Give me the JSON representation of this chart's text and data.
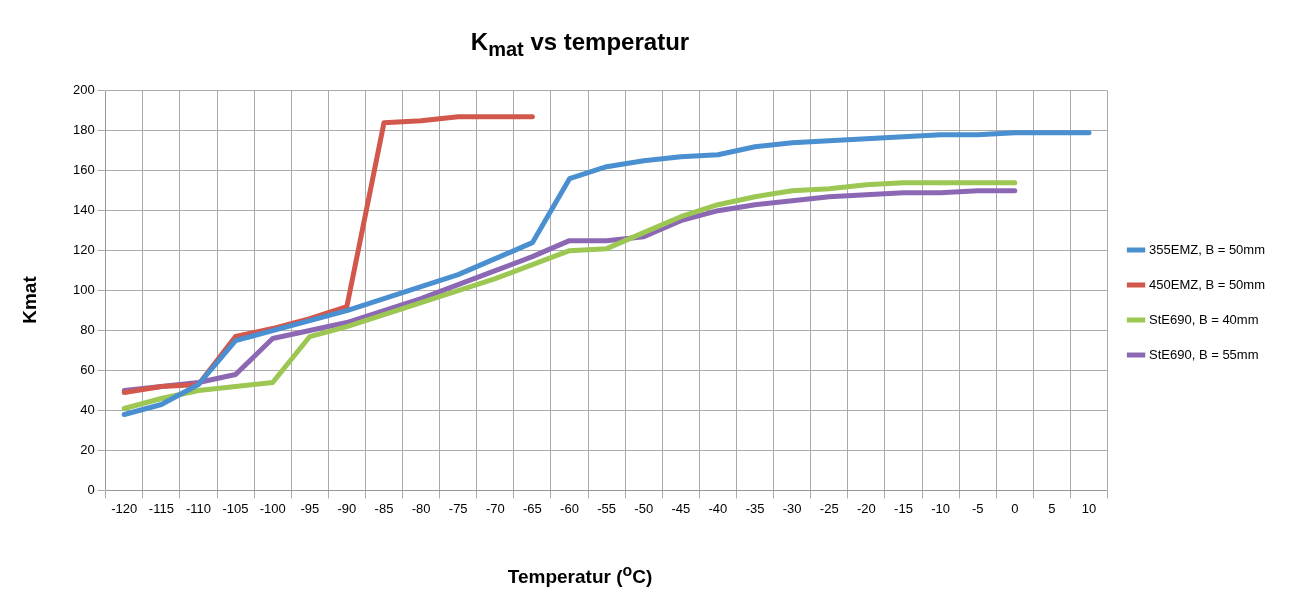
{
  "chart_data": {
    "type": "line",
    "title": "K$_{mat}$ vs temperatur",
    "xlabel": "Temperatur ($^{o}$C)",
    "ylabel": "Kmat",
    "categories": [
      "-120",
      "-115",
      "-110",
      "-105",
      "-100",
      "-95",
      "-90",
      "-85",
      "-80",
      "-75",
      "-70",
      "-65",
      "-60",
      "-55",
      "-50",
      "-45",
      "-40",
      "-35",
      "-30",
      "-25",
      "-20",
      "-15",
      "-10",
      "-5",
      "0",
      "5",
      "10"
    ],
    "series": [
      {
        "name": "355EMZ, B = 50mm",
        "color": "#4a8fd0",
        "values": [
          38,
          43,
          53,
          75,
          80,
          85,
          90,
          96,
          102,
          108,
          116,
          124,
          156,
          162,
          165,
          167,
          168,
          172,
          174,
          175,
          176,
          177,
          178,
          178,
          179,
          179,
          179
        ]
      },
      {
        "name": "450EMZ, B = 50mm",
        "color": "#d2574c",
        "values": [
          49,
          52,
          53,
          77,
          81,
          86,
          92,
          184,
          185,
          187,
          187,
          187,
          null,
          null,
          null,
          null,
          null,
          null,
          null,
          null,
          null,
          null,
          null,
          null,
          null,
          null,
          null
        ]
      },
      {
        "name": "StE690, B = 40mm",
        "color": "#9bc752",
        "values": [
          41,
          46,
          50,
          52,
          54,
          77,
          82,
          88,
          94,
          100,
          106,
          113,
          120,
          121,
          129,
          137,
          143,
          147,
          150,
          151,
          153,
          154,
          154,
          154,
          154,
          null,
          null
        ]
      },
      {
        "name": "StE690, B = 55mm",
        "color": "#8c68b4",
        "values": [
          50,
          52,
          54,
          58,
          76,
          80,
          84,
          90,
          96,
          103,
          110,
          117,
          125,
          125,
          127,
          135,
          140,
          143,
          145,
          147,
          148,
          149,
          149,
          150,
          150,
          null,
          null
        ]
      }
    ],
    "ylim": [
      0,
      200
    ],
    "yticks": [
      0,
      20,
      40,
      60,
      80,
      100,
      120,
      140,
      160,
      180,
      200
    ],
    "grid": true,
    "legend": "right",
    "marker": "none",
    "line_style": "solid"
  }
}
